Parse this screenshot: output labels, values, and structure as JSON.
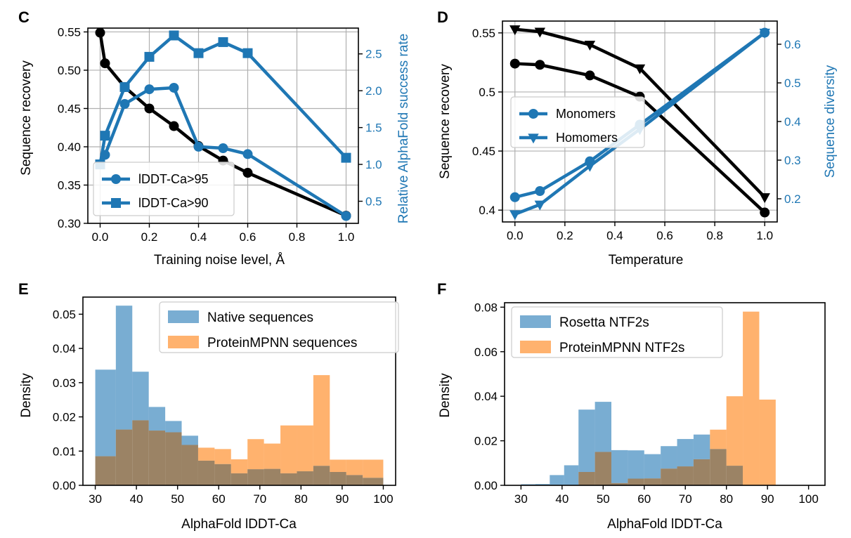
{
  "figure": {
    "panels": [
      "C",
      "D",
      "E",
      "F"
    ]
  },
  "colors": {
    "black": "#000000",
    "blue": "#1f77b4",
    "grid": "#b0b0b0",
    "hist_blue": "#1f77b4",
    "hist_orange": "#ff7f0e",
    "hist_overlap": "#8a6d4a"
  },
  "chart_data": [
    {
      "panel": "C",
      "type": "line",
      "xlabel": "Training noise level, Å",
      "ylabel": "Sequence recovery",
      "ylabel_right": "Relative AlphaFold success rate",
      "xlim": [
        -0.05,
        1.05
      ],
      "ylim": [
        0.3,
        0.555
      ],
      "ylim_right": [
        0.2,
        2.85
      ],
      "xticks": [
        "0.0",
        "0.2",
        "0.4",
        "0.6",
        "0.8",
        "1.0"
      ],
      "xtick_values": [
        0.0,
        0.2,
        0.4,
        0.6,
        0.8,
        1.0
      ],
      "yticks": [
        "0.30",
        "0.35",
        "0.40",
        "0.45",
        "0.50",
        "0.55"
      ],
      "ytick_values": [
        0.3,
        0.35,
        0.4,
        0.45,
        0.5,
        0.55
      ],
      "yticks_right": [
        "0.5",
        "1.0",
        "1.5",
        "2.0",
        "2.5"
      ],
      "ytick_values_right": [
        0.5,
        1.0,
        1.5,
        2.0,
        2.5
      ],
      "grid": true,
      "legend_position": "lower-left",
      "series": [
        {
          "axis": "left",
          "color": "black",
          "marker": "circle",
          "x": [
            0.0,
            0.02,
            0.1,
            0.2,
            0.3,
            0.4,
            0.5,
            0.6,
            1.0
          ],
          "values": [
            0.549,
            0.509,
            0.478,
            0.45,
            0.427,
            0.401,
            0.382,
            0.366,
            0.31
          ]
        },
        {
          "axis": "right",
          "name": "lDDT-Ca>95",
          "color": "blue",
          "marker": "circle",
          "x": [
            0.0,
            0.02,
            0.1,
            0.2,
            0.3,
            0.4,
            0.5,
            0.6,
            1.0
          ],
          "values": [
            1.0,
            1.13,
            1.82,
            2.02,
            2.04,
            1.24,
            1.22,
            1.14,
            0.3
          ]
        },
        {
          "axis": "right",
          "name": "lDDT-Ca>90",
          "color": "blue",
          "marker": "square",
          "x": [
            0.0,
            0.02,
            0.1,
            0.2,
            0.3,
            0.4,
            0.5,
            0.6,
            1.0
          ],
          "values": [
            1.0,
            1.39,
            2.05,
            2.46,
            2.75,
            2.51,
            2.66,
            2.51,
            1.09
          ]
        }
      ]
    },
    {
      "panel": "D",
      "type": "line",
      "xlabel": "Temperature",
      "ylabel": "Sequence recovery",
      "ylabel_right": "Sequence diversity",
      "xlim": [
        -0.05,
        1.05
      ],
      "ylim": [
        0.39,
        0.56
      ],
      "ylim_right": [
        0.14,
        0.66
      ],
      "xticks": [
        "0.0",
        "0.2",
        "0.4",
        "0.6",
        "0.8",
        "1.0"
      ],
      "xtick_values": [
        0.0,
        0.2,
        0.4,
        0.6,
        0.8,
        1.0
      ],
      "yticks": [
        "0.4",
        "0.45",
        "0.5",
        "0.55"
      ],
      "ytick_values": [
        0.4,
        0.45,
        0.5,
        0.55
      ],
      "yticks_right": [
        "0.2",
        "0.3",
        "0.4",
        "0.5",
        "0.6"
      ],
      "ytick_values_right": [
        0.2,
        0.3,
        0.4,
        0.5,
        0.6
      ],
      "grid": true,
      "legend_position": "center-left",
      "series": [
        {
          "axis": "left",
          "color": "black",
          "marker": "circle",
          "x": [
            0.0,
            0.1,
            0.3,
            0.5,
            1.0
          ],
          "values": [
            0.524,
            0.523,
            0.514,
            0.496,
            0.398
          ]
        },
        {
          "axis": "left",
          "color": "black",
          "marker": "triangle",
          "x": [
            0.0,
            0.1,
            0.3,
            0.5,
            1.0
          ],
          "values": [
            0.553,
            0.551,
            0.54,
            0.52,
            0.411
          ]
        },
        {
          "axis": "right",
          "name": "Monomers",
          "color": "blue",
          "marker": "circle",
          "x": [
            0.0,
            0.1,
            0.3,
            0.5,
            1.0
          ],
          "values": [
            0.204,
            0.22,
            0.297,
            0.392,
            0.63
          ]
        },
        {
          "axis": "right",
          "name": "Homomers",
          "color": "blue",
          "marker": "triangle",
          "x": [
            0.0,
            0.1,
            0.3,
            0.5,
            1.0
          ],
          "values": [
            0.16,
            0.185,
            0.285,
            0.38,
            0.63
          ]
        }
      ]
    },
    {
      "panel": "E",
      "type": "bar",
      "subtype": "histogram",
      "xlabel": "AlphaFold lDDT-Ca",
      "ylabel": "Density",
      "xlim": [
        27,
        103
      ],
      "ylim": [
        0,
        0.055
      ],
      "xticks": [
        "30",
        "40",
        "50",
        "60",
        "70",
        "80",
        "90",
        "100"
      ],
      "xtick_values": [
        30,
        40,
        50,
        60,
        70,
        80,
        90,
        100
      ],
      "yticks": [
        "0.00",
        "0.01",
        "0.02",
        "0.03",
        "0.04",
        "0.05"
      ],
      "ytick_values": [
        0.0,
        0.01,
        0.02,
        0.03,
        0.04,
        0.05
      ],
      "grid": false,
      "legend_position": "top-right",
      "bin_edges": [
        30,
        35,
        39,
        43,
        47,
        51,
        55,
        59,
        63,
        67,
        71,
        75,
        79,
        83,
        87,
        91,
        95,
        100
      ],
      "series": [
        {
          "name": "Native sequences",
          "color": "hist_blue",
          "values": [
            0.0338,
            0.0525,
            0.0332,
            0.0229,
            0.0188,
            0.0145,
            0.0072,
            0.0062,
            0.0035,
            0.0047,
            0.0048,
            0.0035,
            0.0041,
            0.0057,
            0.0039,
            0.003,
            0.0022
          ]
        },
        {
          "name": "ProteinMPNN sequences",
          "color": "hist_orange",
          "values": [
            0.0085,
            0.0163,
            0.019,
            0.016,
            0.0155,
            0.0118,
            0.011,
            0.0106,
            0.0076,
            0.0135,
            0.0122,
            0.0175,
            0.0175,
            0.0322,
            0.0075,
            0.0075,
            0.0075
          ]
        }
      ]
    },
    {
      "panel": "F",
      "type": "bar",
      "subtype": "histogram",
      "xlabel": "AlphaFold lDDT-Ca",
      "ylabel": "Density",
      "xlim": [
        26,
        104
      ],
      "ylim": [
        0,
        0.082
      ],
      "xticks": [
        "30",
        "40",
        "50",
        "60",
        "70",
        "80",
        "90",
        "100"
      ],
      "xtick_values": [
        30,
        40,
        50,
        60,
        70,
        80,
        90,
        100
      ],
      "yticks": [
        "0.00",
        "0.02",
        "0.04",
        "0.06",
        "0.08"
      ],
      "ytick_values": [
        0.0,
        0.02,
        0.04,
        0.06,
        0.08
      ],
      "grid": false,
      "legend_position": "top-left",
      "bin_edges": [
        30,
        33.5,
        37,
        40.5,
        44,
        48,
        52,
        56,
        60,
        64,
        68,
        72,
        76,
        80,
        84,
        88,
        92,
        95
      ],
      "series": [
        {
          "name": "Rosetta NTF2s",
          "color": "hist_blue",
          "values": [
            0.0005,
            0.0006,
            0.0046,
            0.009,
            0.034,
            0.0375,
            0.0158,
            0.0157,
            0.014,
            0.0176,
            0.0208,
            0.0228,
            0.0163,
            0.0088,
            0.0,
            0.0,
            0.0
          ]
        },
        {
          "name": "ProteinMPNN NTF2s",
          "color": "hist_orange",
          "values": [
            0.0,
            0.0,
            0.0,
            0.0,
            0.006,
            0.015,
            0.001,
            0.003,
            0.0031,
            0.0075,
            0.0085,
            0.0117,
            0.025,
            0.04,
            0.078,
            0.0385,
            0.0
          ]
        }
      ]
    }
  ]
}
